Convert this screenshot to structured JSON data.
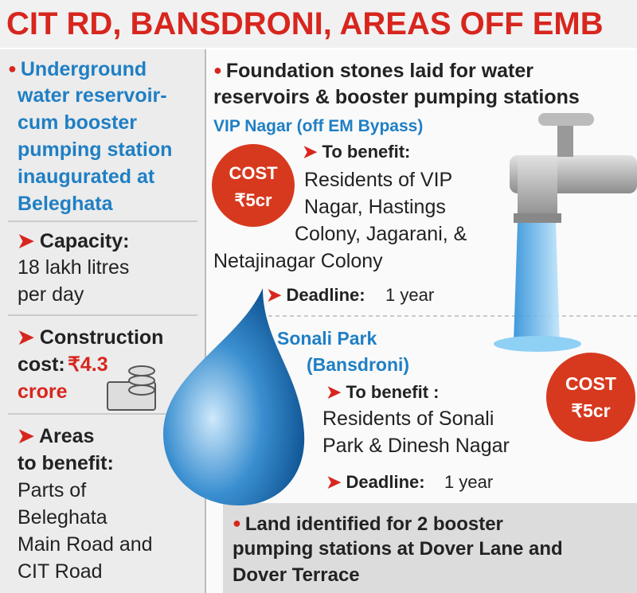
{
  "header": {
    "title": "CIT RD, BANSDRONI, AREAS OFF EMB"
  },
  "left": {
    "headline": [
      "Underground",
      "water reservoir-",
      "cum booster",
      "pumping station",
      "inaugurated at",
      "Beleghata"
    ],
    "capacity": {
      "label": "Capacity:",
      "lines": [
        "18 lakh litres",
        "per day"
      ]
    },
    "construction": {
      "label": [
        "Construction",
        "cost:"
      ],
      "value": [
        "₹4.3",
        "crore"
      ]
    },
    "areas": {
      "label": [
        "Areas",
        "to benefit:"
      ],
      "lines": [
        "Parts of",
        "Beleghata",
        "Main Road and",
        "CIT Road"
      ]
    }
  },
  "right": {
    "headline": [
      "Foundation stones laid for water",
      "reservoirs & booster pumping stations"
    ],
    "sites": [
      {
        "name": [
          "VIP Nagar (off EM Bypass)"
        ],
        "cost_label": "COST",
        "cost": "₹5cr",
        "benefit_label": "To benefit:",
        "benefit": [
          "Residents of VIP",
          "Nagar, Hastings",
          "Colony, Jagarani, &",
          "Netajinagar Colony"
        ],
        "deadline_label": "Deadline:",
        "deadline": "1 year"
      },
      {
        "name": [
          "Sonali Park",
          "(Bansdroni)"
        ],
        "cost_label": "COST",
        "cost": "₹5cr",
        "benefit_label": "To benefit :",
        "benefit": [
          "Residents of Sonali",
          "Park & Dinesh Nagar"
        ],
        "deadline_label": "Deadline:",
        "deadline": "1 year"
      }
    ],
    "footer": [
      "Land identified for 2 booster",
      "pumping stations at Dover Lane and",
      "Dover Terrace"
    ]
  }
}
